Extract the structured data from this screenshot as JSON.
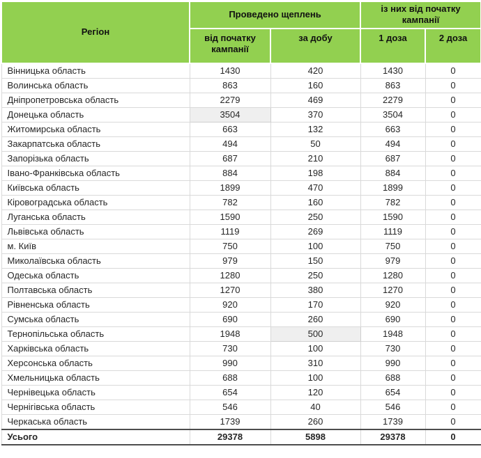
{
  "colors": {
    "header_bg": "#92d050",
    "grid_line": "#d9d9d9",
    "strong_border": "#4d4d4d",
    "cell_highlight": "#efefef",
    "text": "#262626"
  },
  "chart_data": {
    "type": "table",
    "header": {
      "region": "Регіон",
      "group1_label": "Проведено щеплень",
      "group1_sub": [
        "від початку кампанії",
        "за добу"
      ],
      "group2_label": "із них від початку кампанії",
      "group2_sub": [
        "1 доза",
        "2 доза"
      ]
    },
    "rows": [
      {
        "region": "Вінницька область",
        "values": [
          1430,
          420,
          1430,
          0
        ],
        "highlight": null
      },
      {
        "region": "Волинська область",
        "values": [
          863,
          160,
          863,
          0
        ],
        "highlight": null
      },
      {
        "region": "Дніпропетровська область",
        "values": [
          2279,
          469,
          2279,
          0
        ],
        "highlight": null
      },
      {
        "region": "Донецька область",
        "values": [
          3504,
          370,
          3504,
          0
        ],
        "highlight": 0
      },
      {
        "region": "Житомирська область",
        "values": [
          663,
          132,
          663,
          0
        ],
        "highlight": null
      },
      {
        "region": "Закарпатська область",
        "values": [
          494,
          50,
          494,
          0
        ],
        "highlight": null
      },
      {
        "region": "Запорізька область",
        "values": [
          687,
          210,
          687,
          0
        ],
        "highlight": null
      },
      {
        "region": "Івано-Франківська область",
        "values": [
          884,
          198,
          884,
          0
        ],
        "highlight": null
      },
      {
        "region": "Київська область",
        "values": [
          1899,
          470,
          1899,
          0
        ],
        "highlight": null
      },
      {
        "region": "Кіровоградська область",
        "values": [
          782,
          160,
          782,
          0
        ],
        "highlight": null
      },
      {
        "region": "Луганська область",
        "values": [
          1590,
          250,
          1590,
          0
        ],
        "highlight": null
      },
      {
        "region": "Львівська область",
        "values": [
          1119,
          269,
          1119,
          0
        ],
        "highlight": null
      },
      {
        "region": "м. Київ",
        "values": [
          750,
          100,
          750,
          0
        ],
        "highlight": null
      },
      {
        "region": "Миколаївська область",
        "values": [
          979,
          150,
          979,
          0
        ],
        "highlight": null
      },
      {
        "region": "Одеська область",
        "values": [
          1280,
          250,
          1280,
          0
        ],
        "highlight": null
      },
      {
        "region": "Полтавська область",
        "values": [
          1270,
          380,
          1270,
          0
        ],
        "highlight": null
      },
      {
        "region": "Рівненська область",
        "values": [
          920,
          170,
          920,
          0
        ],
        "highlight": null
      },
      {
        "region": "Сумська область",
        "values": [
          690,
          260,
          690,
          0
        ],
        "highlight": null
      },
      {
        "region": "Тернопільська область",
        "values": [
          1948,
          500,
          1948,
          0
        ],
        "highlight": 1
      },
      {
        "region": "Харківська область",
        "values": [
          730,
          100,
          730,
          0
        ],
        "highlight": null
      },
      {
        "region": "Херсонська область",
        "values": [
          990,
          310,
          990,
          0
        ],
        "highlight": null
      },
      {
        "region": "Хмельницька область",
        "values": [
          688,
          100,
          688,
          0
        ],
        "highlight": null
      },
      {
        "region": "Чернівецька область",
        "values": [
          654,
          120,
          654,
          0
        ],
        "highlight": null
      },
      {
        "region": "Чернігівська область",
        "values": [
          546,
          40,
          546,
          0
        ],
        "highlight": null
      },
      {
        "region": "Черкаська область",
        "values": [
          1739,
          260,
          1739,
          0
        ],
        "highlight": null
      }
    ],
    "total": {
      "label": "Усього",
      "values": [
        29378,
        5898,
        29378,
        0
      ]
    }
  }
}
